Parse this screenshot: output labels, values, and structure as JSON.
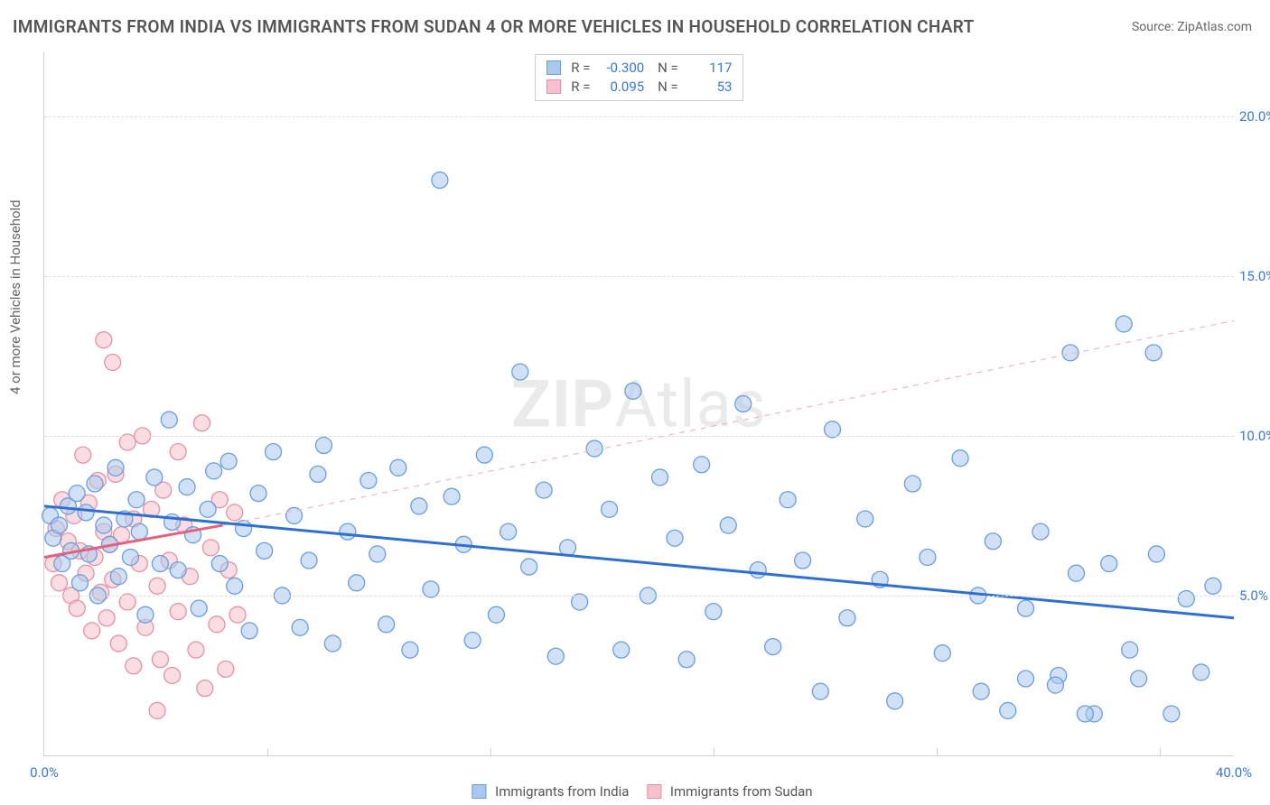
{
  "title": "IMMIGRANTS FROM INDIA VS IMMIGRANTS FROM SUDAN 4 OR MORE VEHICLES IN HOUSEHOLD CORRELATION CHART",
  "source": "Source: ZipAtlas.com",
  "ylabel": "4 or more Vehicles in Household",
  "watermark_a": "ZIP",
  "watermark_b": "Atlas",
  "chart": {
    "type": "scatter",
    "xlim": [
      0,
      40
    ],
    "ylim": [
      0,
      22
    ],
    "xtick_labels": [
      "0.0%",
      "40.0%"
    ],
    "xtick_positions": [
      0,
      40
    ],
    "xminor_positions": [
      7.5,
      15,
      22.5,
      30,
      37.5
    ],
    "ytick_labels": [
      "5.0%",
      "10.0%",
      "15.0%",
      "20.0%"
    ],
    "ytick_positions": [
      5,
      10,
      15,
      20
    ],
    "background_color": "#ffffff",
    "grid_color": "#dddddd",
    "axis_color": "#cfcfcf",
    "tick_label_color": "#3a78d6",
    "text_color": "#555555",
    "marker_radius": 9,
    "marker_opacity": 0.55,
    "line_width_solid": 3,
    "line_width_dashed": 1.2
  },
  "series": {
    "india": {
      "label": "Immigrants from India",
      "color_fill": "#a9c8ee",
      "color_stroke": "#6b9ddd",
      "r": "-0.300",
      "n": "117",
      "trend": {
        "x1": 0,
        "y1": 7.8,
        "x2": 40,
        "y2": 4.3,
        "style": "solid",
        "color": "#2f6fd0"
      },
      "points": [
        [
          0.2,
          7.5
        ],
        [
          0.3,
          6.8
        ],
        [
          0.5,
          7.2
        ],
        [
          0.6,
          6.0
        ],
        [
          0.8,
          7.8
        ],
        [
          0.9,
          6.4
        ],
        [
          1.1,
          8.2
        ],
        [
          1.2,
          5.4
        ],
        [
          1.4,
          7.6
        ],
        [
          1.5,
          6.3
        ],
        [
          1.7,
          8.5
        ],
        [
          1.8,
          5.0
        ],
        [
          2.0,
          7.2
        ],
        [
          2.2,
          6.6
        ],
        [
          2.4,
          9.0
        ],
        [
          2.5,
          5.6
        ],
        [
          2.7,
          7.4
        ],
        [
          2.9,
          6.2
        ],
        [
          3.1,
          8.0
        ],
        [
          3.2,
          7.0
        ],
        [
          3.4,
          4.4
        ],
        [
          3.7,
          8.7
        ],
        [
          3.9,
          6.0
        ],
        [
          4.2,
          10.5
        ],
        [
          4.3,
          7.3
        ],
        [
          4.5,
          5.8
        ],
        [
          4.8,
          8.4
        ],
        [
          5.0,
          6.9
        ],
        [
          5.2,
          4.6
        ],
        [
          5.5,
          7.7
        ],
        [
          5.7,
          8.9
        ],
        [
          5.9,
          6.0
        ],
        [
          6.2,
          9.2
        ],
        [
          6.4,
          5.3
        ],
        [
          6.7,
          7.1
        ],
        [
          6.9,
          3.9
        ],
        [
          7.2,
          8.2
        ],
        [
          7.4,
          6.4
        ],
        [
          7.7,
          9.5
        ],
        [
          8.0,
          5.0
        ],
        [
          8.4,
          7.5
        ],
        [
          8.6,
          4.0
        ],
        [
          8.9,
          6.1
        ],
        [
          9.2,
          8.8
        ],
        [
          9.4,
          9.7
        ],
        [
          9.7,
          3.5
        ],
        [
          10.2,
          7.0
        ],
        [
          10.5,
          5.4
        ],
        [
          10.9,
          8.6
        ],
        [
          11.2,
          6.3
        ],
        [
          11.5,
          4.1
        ],
        [
          11.9,
          9.0
        ],
        [
          12.3,
          3.3
        ],
        [
          12.6,
          7.8
        ],
        [
          13.0,
          5.2
        ],
        [
          13.3,
          18.0
        ],
        [
          13.7,
          8.1
        ],
        [
          14.1,
          6.6
        ],
        [
          14.4,
          3.6
        ],
        [
          14.8,
          9.4
        ],
        [
          15.2,
          4.4
        ],
        [
          15.6,
          7.0
        ],
        [
          16.0,
          12.0
        ],
        [
          16.3,
          5.9
        ],
        [
          16.8,
          8.3
        ],
        [
          17.2,
          3.1
        ],
        [
          17.6,
          6.5
        ],
        [
          18.0,
          4.8
        ],
        [
          18.5,
          9.6
        ],
        [
          19.0,
          7.7
        ],
        [
          19.4,
          3.3
        ],
        [
          19.8,
          11.4
        ],
        [
          20.3,
          5.0
        ],
        [
          20.7,
          8.7
        ],
        [
          21.2,
          6.8
        ],
        [
          21.6,
          3.0
        ],
        [
          22.1,
          9.1
        ],
        [
          22.5,
          4.5
        ],
        [
          23.0,
          7.2
        ],
        [
          23.5,
          11.0
        ],
        [
          24.0,
          5.8
        ],
        [
          24.5,
          3.4
        ],
        [
          25.0,
          8.0
        ],
        [
          25.5,
          6.1
        ],
        [
          26.1,
          2.0
        ],
        [
          26.5,
          10.2
        ],
        [
          27.0,
          4.3
        ],
        [
          27.6,
          7.4
        ],
        [
          28.1,
          5.5
        ],
        [
          28.6,
          1.7
        ],
        [
          29.2,
          8.5
        ],
        [
          29.7,
          6.2
        ],
        [
          30.2,
          3.2
        ],
        [
          30.8,
          9.3
        ],
        [
          31.4,
          5.0
        ],
        [
          31.9,
          6.7
        ],
        [
          32.4,
          1.4
        ],
        [
          33.0,
          4.6
        ],
        [
          33.5,
          7.0
        ],
        [
          34.1,
          2.5
        ],
        [
          34.5,
          12.6
        ],
        [
          34.7,
          5.7
        ],
        [
          35.3,
          1.3
        ],
        [
          35.8,
          6.0
        ],
        [
          36.3,
          13.5
        ],
        [
          36.5,
          3.3
        ],
        [
          36.8,
          2.4
        ],
        [
          37.3,
          12.6
        ],
        [
          37.4,
          6.3
        ],
        [
          37.9,
          1.3
        ],
        [
          38.4,
          4.9
        ],
        [
          38.9,
          2.6
        ],
        [
          39.3,
          5.3
        ],
        [
          35.0,
          1.3
        ],
        [
          34.0,
          2.2
        ],
        [
          33.0,
          2.4
        ],
        [
          31.5,
          2.0
        ]
      ]
    },
    "sudan": {
      "label": "Immigrants from Sudan",
      "color_fill": "#f6c1cc",
      "color_stroke": "#e591a4",
      "r": "0.095",
      "n": "53",
      "trend_solid": {
        "x1": 0,
        "y1": 6.2,
        "x2": 6.0,
        "y2": 7.2,
        "style": "solid",
        "color": "#e85f7d"
      },
      "trend_dashed": {
        "x1": 6.0,
        "y1": 7.2,
        "x2": 40,
        "y2": 13.6,
        "style": "dashed",
        "color": "#f2b6c2"
      },
      "points": [
        [
          0.3,
          6.0
        ],
        [
          0.4,
          7.1
        ],
        [
          0.5,
          5.4
        ],
        [
          0.6,
          8.0
        ],
        [
          0.8,
          6.7
        ],
        [
          0.9,
          5.0
        ],
        [
          1.0,
          7.5
        ],
        [
          1.1,
          4.6
        ],
        [
          1.2,
          6.4
        ],
        [
          1.3,
          9.4
        ],
        [
          1.4,
          5.7
        ],
        [
          1.5,
          7.9
        ],
        [
          1.6,
          3.9
        ],
        [
          1.7,
          6.2
        ],
        [
          1.8,
          8.6
        ],
        [
          1.9,
          5.1
        ],
        [
          2.0,
          13.0
        ],
        [
          2.0,
          7.0
        ],
        [
          2.1,
          4.3
        ],
        [
          2.2,
          6.6
        ],
        [
          2.3,
          12.3
        ],
        [
          2.3,
          5.5
        ],
        [
          2.4,
          8.8
        ],
        [
          2.5,
          3.5
        ],
        [
          2.6,
          6.9
        ],
        [
          2.8,
          9.8
        ],
        [
          2.8,
          4.8
        ],
        [
          3.0,
          7.4
        ],
        [
          3.0,
          2.8
        ],
        [
          3.2,
          6.0
        ],
        [
          3.3,
          10.0
        ],
        [
          3.4,
          4.0
        ],
        [
          3.6,
          7.7
        ],
        [
          3.8,
          5.3
        ],
        [
          3.8,
          1.4
        ],
        [
          3.9,
          3.0
        ],
        [
          4.0,
          8.3
        ],
        [
          4.2,
          6.1
        ],
        [
          4.3,
          2.5
        ],
        [
          4.5,
          9.5
        ],
        [
          4.5,
          4.5
        ],
        [
          4.7,
          7.2
        ],
        [
          4.9,
          5.6
        ],
        [
          5.1,
          3.3
        ],
        [
          5.3,
          10.4
        ],
        [
          5.4,
          2.1
        ],
        [
          5.6,
          6.5
        ],
        [
          5.8,
          4.1
        ],
        [
          5.9,
          8.0
        ],
        [
          6.1,
          2.7
        ],
        [
          6.2,
          5.8
        ],
        [
          6.4,
          7.6
        ],
        [
          6.5,
          4.4
        ]
      ]
    }
  },
  "stats_box": {
    "rows": [
      {
        "swatch_fill": "#a9c8ee",
        "swatch_stroke": "#6b9ddd",
        "r": "-0.300",
        "n": "117"
      },
      {
        "swatch_fill": "#f6c1cc",
        "swatch_stroke": "#e591a4",
        "r": "0.095",
        "n": "53"
      }
    ],
    "label_r": "R =",
    "label_n": "N ="
  },
  "legend_items": [
    {
      "fill": "#a9c8ee",
      "stroke": "#6b9ddd",
      "label": "Immigrants from India"
    },
    {
      "fill": "#f6c1cc",
      "stroke": "#e591a4",
      "label": "Immigrants from Sudan"
    }
  ]
}
